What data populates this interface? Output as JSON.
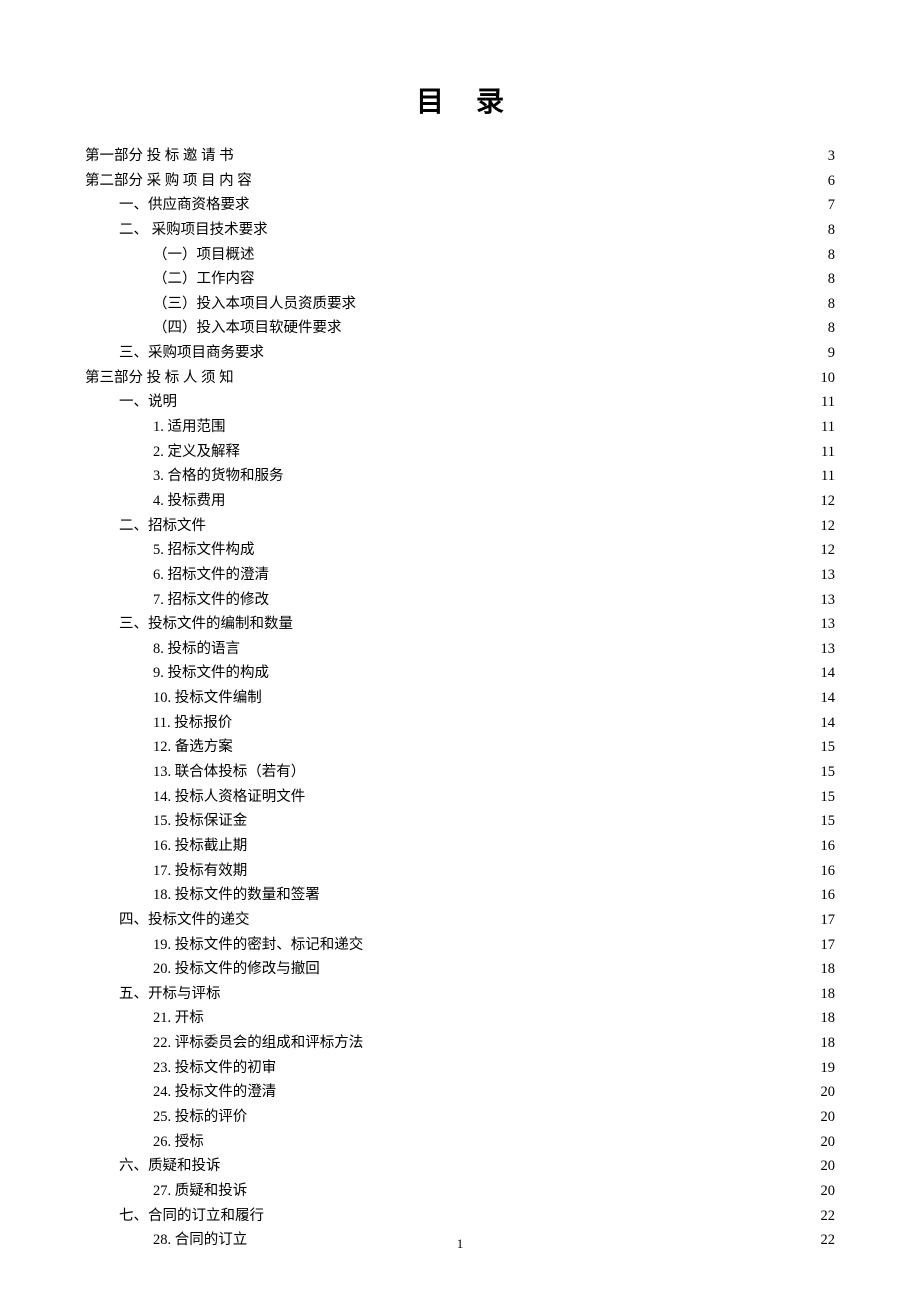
{
  "title": "目录",
  "pageNumber": "1",
  "entries": [
    {
      "indent": 0,
      "label": "第一部分   投 标 邀 请 书",
      "page": "3"
    },
    {
      "indent": 0,
      "label": "第二部分   采 购 项 目 内 容",
      "page": "6"
    },
    {
      "indent": 1,
      "label": "一、供应商资格要求",
      "page": "7"
    },
    {
      "indent": 1,
      "label": "二、 采购项目技术要求",
      "page": "8"
    },
    {
      "indent": 2,
      "label": "（一）项目概述",
      "page": "8"
    },
    {
      "indent": 2,
      "label": "（二）工作内容",
      "page": "8"
    },
    {
      "indent": 2,
      "label": "（三）投入本项目人员资质要求",
      "page": "8"
    },
    {
      "indent": 2,
      "label": "（四）投入本项目软硬件要求",
      "page": "8"
    },
    {
      "indent": 1,
      "label": "三、采购项目商务要求",
      "page": "9"
    },
    {
      "indent": 0,
      "label": "第三部分   投 标 人 须 知",
      "page": "10"
    },
    {
      "indent": 1,
      "label": "一、说明",
      "page": "11"
    },
    {
      "indent": 2,
      "label": "1. 适用范围",
      "page": "11"
    },
    {
      "indent": 2,
      "label": "2. 定义及解释",
      "page": "11"
    },
    {
      "indent": 2,
      "label": "3. 合格的货物和服务",
      "page": "11"
    },
    {
      "indent": 2,
      "label": "4. 投标费用",
      "page": "12"
    },
    {
      "indent": 1,
      "label": "二、招标文件",
      "page": "12"
    },
    {
      "indent": 2,
      "label": "5. 招标文件构成",
      "page": "12"
    },
    {
      "indent": 2,
      "label": "6. 招标文件的澄清",
      "page": "13"
    },
    {
      "indent": 2,
      "label": "7. 招标文件的修改",
      "page": "13"
    },
    {
      "indent": 1,
      "label": "三、投标文件的编制和数量",
      "page": "13"
    },
    {
      "indent": 2,
      "label": "8. 投标的语言",
      "page": "13"
    },
    {
      "indent": 2,
      "label": "9. 投标文件的构成",
      "page": "14"
    },
    {
      "indent": 2,
      "label": "10. 投标文件编制",
      "page": "14"
    },
    {
      "indent": 2,
      "label": "11. 投标报价",
      "page": "14"
    },
    {
      "indent": 2,
      "label": "12. 备选方案",
      "page": "15"
    },
    {
      "indent": 2,
      "label": "13. 联合体投标（若有）",
      "page": "15"
    },
    {
      "indent": 2,
      "label": "14. 投标人资格证明文件",
      "page": "15"
    },
    {
      "indent": 2,
      "label": "15. 投标保证金",
      "page": "15"
    },
    {
      "indent": 2,
      "label": "16. 投标截止期",
      "page": "16"
    },
    {
      "indent": 2,
      "label": "17. 投标有效期",
      "page": "16"
    },
    {
      "indent": 2,
      "label": "18. 投标文件的数量和签署",
      "page": "16"
    },
    {
      "indent": 1,
      "label": "四、投标文件的递交",
      "page": "17"
    },
    {
      "indent": 2,
      "label": "19. 投标文件的密封、标记和递交",
      "page": "17"
    },
    {
      "indent": 2,
      "label": "20. 投标文件的修改与撤回",
      "page": "18"
    },
    {
      "indent": 1,
      "label": "五、开标与评标",
      "page": "18"
    },
    {
      "indent": 2,
      "label": "21. 开标",
      "page": "18"
    },
    {
      "indent": 2,
      "label": "22. 评标委员会的组成和评标方法",
      "page": "18"
    },
    {
      "indent": 2,
      "label": "23. 投标文件的初审",
      "page": "19"
    },
    {
      "indent": 2,
      "label": "24. 投标文件的澄清",
      "page": "20"
    },
    {
      "indent": 2,
      "label": "25. 投标的评价",
      "page": "20"
    },
    {
      "indent": 2,
      "label": "26. 授标",
      "page": "20"
    },
    {
      "indent": 1,
      "label": "六、质疑和投诉",
      "page": "20"
    },
    {
      "indent": 2,
      "label": "27. 质疑和投诉",
      "page": "20"
    },
    {
      "indent": 1,
      "label": "七、合同的订立和履行",
      "page": "22"
    },
    {
      "indent": 2,
      "label": "28. 合同的订立",
      "page": "22"
    }
  ]
}
